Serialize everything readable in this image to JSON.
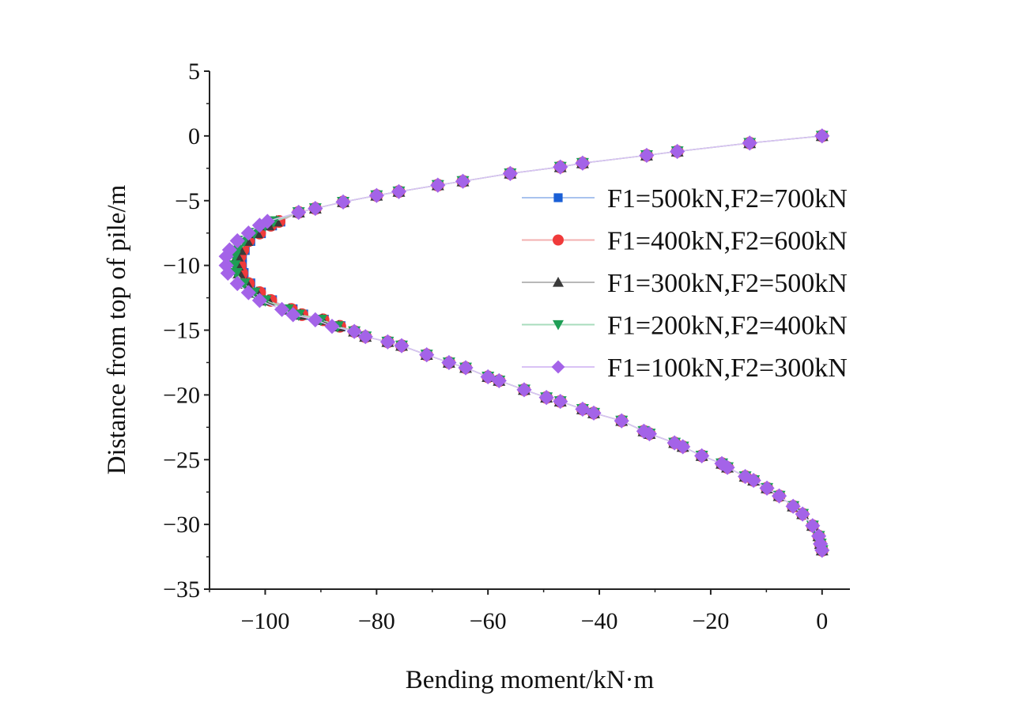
{
  "chart_data": {
    "type": "line",
    "title": "",
    "xlabel": "Bending moment/kN·m",
    "ylabel": "Distance from top of pile/m",
    "xlim": [
      -110,
      5
    ],
    "ylim": [
      -35,
      5
    ],
    "xticks": [
      -100,
      -80,
      -60,
      -40,
      -20,
      0
    ],
    "xtick_labels": [
      "−100",
      "−80",
      "−60",
      "−40",
      "−20",
      "0"
    ],
    "yticks": [
      5,
      0,
      -5,
      -10,
      -15,
      -20,
      -25,
      -30,
      -35
    ],
    "ytick_labels": [
      "5",
      "0",
      "−5",
      "−10",
      "−15",
      "−20",
      "−25",
      "−30",
      "−35"
    ],
    "grid": false,
    "legend_position": "upper-right",
    "y": [
      0,
      -0.55,
      -1.2,
      -1.5,
      -2.1,
      -2.4,
      -2.9,
      -3.5,
      -3.8,
      -4.3,
      -4.6,
      -5.1,
      -5.6,
      -5.9,
      -6.6,
      -6.9,
      -7.5,
      -8.1,
      -8.8,
      -9.3,
      -10,
      -10.6,
      -11.4,
      -12.1,
      -12.7,
      -13.4,
      -13.8,
      -14.2,
      -14.7,
      -15.1,
      -15.5,
      -15.9,
      -16.2,
      -16.9,
      -17.5,
      -17.9,
      -18.6,
      -18.9,
      -19.6,
      -20.2,
      -20.5,
      -21.1,
      -21.4,
      -22,
      -22.8,
      -23,
      -23.7,
      -24,
      -24.7,
      -25.3,
      -25.6,
      -26.3,
      -26.6,
      -27.2,
      -27.8,
      -28.6,
      -29.2,
      -30.1,
      -30.9,
      -31.5,
      -32
    ],
    "series": [
      {
        "name": "F1=500kN,F2=700kN",
        "color": "#1a5fd6",
        "line_color": "#a9c3ee",
        "marker": "square",
        "x": [
          0,
          -13,
          -26,
          -31.5,
          -43,
          -47,
          -56,
          -64.5,
          -69,
          -76,
          -80,
          -86,
          -91,
          -94,
          -97.3,
          -98.8,
          -100.8,
          -102.7,
          -103.7,
          -104.2,
          -104.2,
          -103.9,
          -102.7,
          -100.8,
          -98.8,
          -95.1,
          -93.2,
          -89.5,
          -86.5,
          -84,
          -82,
          -78,
          -75.5,
          -71,
          -67,
          -64,
          -60,
          -58,
          -53.5,
          -49.5,
          -47,
          -43,
          -41,
          -36,
          -32,
          -31,
          -26.5,
          -25,
          -21.6,
          -18,
          -17,
          -13.8,
          -12.3,
          -9.9,
          -7.7,
          -5.2,
          -3.5,
          -1.7,
          -0.6,
          -0.3,
          0
        ]
      },
      {
        "name": "F1=400kN,F2=600kN",
        "color": "#f03a3a",
        "line_color": "#f3b0b0",
        "marker": "circle",
        "x": [
          0,
          -13,
          -26,
          -31.5,
          -43,
          -47,
          -56,
          -64.5,
          -69,
          -76,
          -80,
          -86,
          -91,
          -94,
          -97.5,
          -99,
          -101,
          -103,
          -104,
          -104.5,
          -104.5,
          -104.2,
          -103,
          -101,
          -99,
          -95.3,
          -93.4,
          -89.6,
          -86.6,
          -84,
          -82,
          -78,
          -75.5,
          -71,
          -67,
          -64,
          -60,
          -58,
          -53.5,
          -49.5,
          -47,
          -43,
          -41,
          -36,
          -32,
          -31,
          -26.5,
          -25,
          -21.6,
          -18,
          -17,
          -13.8,
          -12.3,
          -9.9,
          -7.7,
          -5.2,
          -3.5,
          -1.7,
          -0.6,
          -0.3,
          0
        ]
      },
      {
        "name": "F1=300kN,F2=500kN",
        "color": "#3a3a3a",
        "line_color": "#b8b8b8",
        "marker": "triangle-up",
        "x": [
          0,
          -13,
          -26,
          -31.5,
          -43,
          -47,
          -56,
          -64.5,
          -69,
          -76,
          -80,
          -86,
          -91,
          -94,
          -98,
          -99.5,
          -101.5,
          -103.3,
          -104.5,
          -105,
          -105,
          -104.7,
          -103.3,
          -101.5,
          -99.5,
          -95.7,
          -93.7,
          -89.8,
          -86.8,
          -84,
          -82,
          -78,
          -75.5,
          -71,
          -67,
          -64,
          -60,
          -58,
          -53.5,
          -49.5,
          -47,
          -43,
          -41,
          -36,
          -32,
          -31,
          -26.5,
          -25,
          -21.6,
          -18,
          -17,
          -13.8,
          -12.3,
          -9.9,
          -7.7,
          -5.2,
          -3.5,
          -1.7,
          -0.6,
          -0.3,
          0
        ]
      },
      {
        "name": "F1=200kN,F2=400kN",
        "color": "#1e9e55",
        "line_color": "#a8dcbc",
        "marker": "triangle-down",
        "x": [
          0,
          -13,
          -26,
          -31.5,
          -43,
          -47,
          -56,
          -64.5,
          -69,
          -76,
          -80,
          -86,
          -91,
          -94,
          -98.5,
          -100,
          -102,
          -103.8,
          -105,
          -105.5,
          -105.5,
          -105.2,
          -103.8,
          -102,
          -100,
          -96,
          -94,
          -90,
          -87,
          -84,
          -82,
          -78,
          -75.5,
          -71,
          -67,
          -64,
          -60,
          -58,
          -53.5,
          -49.5,
          -47,
          -43,
          -41,
          -36,
          -32,
          -31,
          -26.5,
          -25,
          -21.6,
          -18,
          -17,
          -13.8,
          -12.3,
          -9.9,
          -7.7,
          -5.2,
          -3.5,
          -1.7,
          -0.6,
          -0.3,
          0
        ]
      },
      {
        "name": "F1=100kN,F2=300kN",
        "color": "#a463e8",
        "line_color": "#d9c2f5",
        "marker": "diamond",
        "x": [
          0,
          -13,
          -26,
          -31.5,
          -43,
          -47,
          -56,
          -64.5,
          -69,
          -76,
          -80,
          -86,
          -91,
          -94,
          -99.6,
          -101,
          -103,
          -105,
          -106.4,
          -107,
          -107,
          -106.7,
          -105,
          -103,
          -101,
          -97,
          -95,
          -91,
          -88,
          -84,
          -82,
          -78,
          -75.5,
          -71,
          -67,
          -64,
          -60,
          -58,
          -53.5,
          -49.5,
          -47,
          -43,
          -41,
          -36,
          -32,
          -31,
          -26.5,
          -25,
          -21.6,
          -18,
          -17,
          -13.8,
          -12.3,
          -9.9,
          -7.7,
          -5.2,
          -3.5,
          -1.7,
          -0.6,
          -0.3,
          0
        ]
      }
    ]
  }
}
